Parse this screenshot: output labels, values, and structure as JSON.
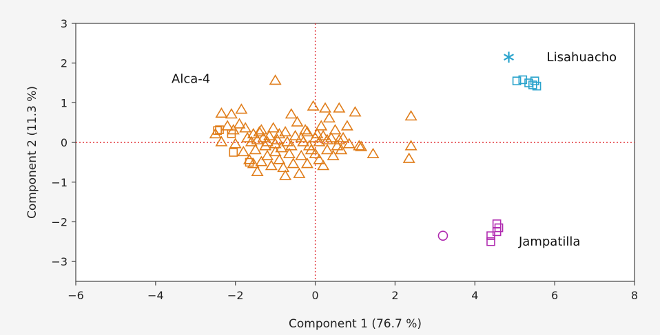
{
  "chart_data": {
    "type": "scatter",
    "xlabel": "Component 1  (76.7 %)",
    "ylabel": "Component 2  (11.3 %)",
    "xlim": [
      -6,
      8
    ],
    "ylim": [
      -3.5,
      3
    ],
    "xticks": [
      -6,
      -4,
      -2,
      0,
      2,
      4,
      6,
      8
    ],
    "yticks": [
      3,
      2,
      1,
      0,
      -1,
      -2,
      -3
    ],
    "grid": false,
    "reference_lines": {
      "x": 0,
      "y": 0,
      "color": "#e0282e",
      "style": "dotted"
    },
    "group_labels": [
      {
        "text": "Alca-4",
        "x": -3.6,
        "y": 1.5
      },
      {
        "text": "Lisahuacho",
        "x": 5.8,
        "y": 2.05
      },
      {
        "text": "Jampatilla",
        "x": 5.1,
        "y": -2.6
      }
    ],
    "series": [
      {
        "color": "#e07d1a",
        "marker": "triangle",
        "points": [
          [
            -1.0,
            1.55
          ],
          [
            -2.35,
            0.72
          ],
          [
            -2.1,
            0.7
          ],
          [
            -1.85,
            0.82
          ],
          [
            -2.5,
            0.2
          ],
          [
            -2.2,
            0.4
          ],
          [
            -2.05,
            0.3
          ],
          [
            -1.9,
            0.45
          ],
          [
            -1.75,
            0.35
          ],
          [
            -1.7,
            0.1
          ],
          [
            -1.55,
            0.2
          ],
          [
            -1.45,
            0.05
          ],
          [
            -1.35,
            0.3
          ],
          [
            -1.25,
            -0.1
          ],
          [
            -1.15,
            0.15
          ],
          [
            -1.05,
            0.35
          ],
          [
            -0.95,
            0.05
          ],
          [
            -0.85,
            -0.15
          ],
          [
            -0.75,
            0.25
          ],
          [
            -0.6,
            0.7
          ],
          [
            -0.45,
            0.5
          ],
          [
            -0.35,
            0.1
          ],
          [
            -0.25,
            0.3
          ],
          [
            -0.15,
            -0.1
          ],
          [
            -0.05,
            0.9
          ],
          [
            0.05,
            0.2
          ],
          [
            0.15,
            0.4
          ],
          [
            0.25,
            0.85
          ],
          [
            0.35,
            0.6
          ],
          [
            0.5,
            0.3
          ],
          [
            0.6,
            0.85
          ],
          [
            0.7,
            0.1
          ],
          [
            0.8,
            0.4
          ],
          [
            1.0,
            0.75
          ],
          [
            1.1,
            -0.1
          ],
          [
            1.45,
            -0.3
          ],
          [
            2.4,
            0.65
          ],
          [
            2.4,
            -0.1
          ],
          [
            2.35,
            -0.42
          ],
          [
            -2.35,
            0.0
          ],
          [
            -2.0,
            -0.05
          ],
          [
            -1.8,
            -0.25
          ],
          [
            -1.65,
            -0.45
          ],
          [
            -1.55,
            -0.55
          ],
          [
            -1.45,
            -0.75
          ],
          [
            -1.35,
            -0.5
          ],
          [
            -1.2,
            -0.35
          ],
          [
            -1.1,
            -0.6
          ],
          [
            -1.0,
            -0.25
          ],
          [
            -0.9,
            -0.45
          ],
          [
            -0.8,
            -0.65
          ],
          [
            -0.75,
            -0.85
          ],
          [
            -0.65,
            -0.3
          ],
          [
            -0.55,
            -0.55
          ],
          [
            -0.4,
            -0.8
          ],
          [
            -0.35,
            -0.35
          ],
          [
            -0.2,
            -0.55
          ],
          [
            -0.1,
            -0.2
          ],
          [
            0.0,
            -0.3
          ],
          [
            0.1,
            -0.45
          ],
          [
            0.2,
            -0.6
          ],
          [
            0.3,
            -0.2
          ],
          [
            0.45,
            -0.35
          ],
          [
            0.55,
            -0.1
          ],
          [
            0.65,
            -0.2
          ],
          [
            0.85,
            -0.05
          ],
          [
            -1.6,
            0.0
          ],
          [
            -1.5,
            -0.2
          ],
          [
            -1.3,
            0.1
          ],
          [
            -1.2,
            0.0
          ],
          [
            -0.9,
            0.2
          ],
          [
            -0.7,
            0.0
          ],
          [
            -0.5,
            0.15
          ],
          [
            -0.3,
            0.0
          ],
          [
            0.0,
            0.1
          ],
          [
            0.1,
            0.0
          ],
          [
            0.2,
            0.15
          ],
          [
            0.3,
            0.05
          ],
          [
            0.4,
            0.1
          ],
          [
            -0.6,
            -0.1
          ],
          [
            -1.4,
            0.25
          ],
          [
            -1.0,
            -0.05
          ],
          [
            -0.2,
            0.25
          ],
          [
            0.6,
            0.05
          ],
          [
            1.15,
            -0.12
          ]
        ]
      },
      {
        "color": "#e07d1a",
        "marker": "square",
        "points": [
          [
            -2.45,
            0.3
          ],
          [
            -2.4,
            0.32
          ],
          [
            -2.1,
            0.22
          ],
          [
            -2.05,
            -0.25
          ],
          [
            -1.65,
            -0.5
          ]
        ]
      },
      {
        "color": "#2aa3cc",
        "marker": "square",
        "points": [
          [
            5.05,
            1.55
          ],
          [
            5.2,
            1.58
          ],
          [
            5.35,
            1.5
          ],
          [
            5.45,
            1.45
          ],
          [
            5.5,
            1.55
          ],
          [
            5.55,
            1.42
          ]
        ]
      },
      {
        "color": "#2aa3cc",
        "marker": "asterisk",
        "points": [
          [
            4.85,
            2.15
          ]
        ]
      },
      {
        "color": "#b02bb0",
        "marker": "square",
        "points": [
          [
            4.55,
            -2.05
          ],
          [
            4.6,
            -2.15
          ],
          [
            4.55,
            -2.25
          ],
          [
            4.4,
            -2.35
          ],
          [
            4.4,
            -2.5
          ]
        ]
      },
      {
        "color": "#b02bb0",
        "marker": "circle",
        "points": [
          [
            3.2,
            -2.35
          ]
        ]
      }
    ]
  }
}
